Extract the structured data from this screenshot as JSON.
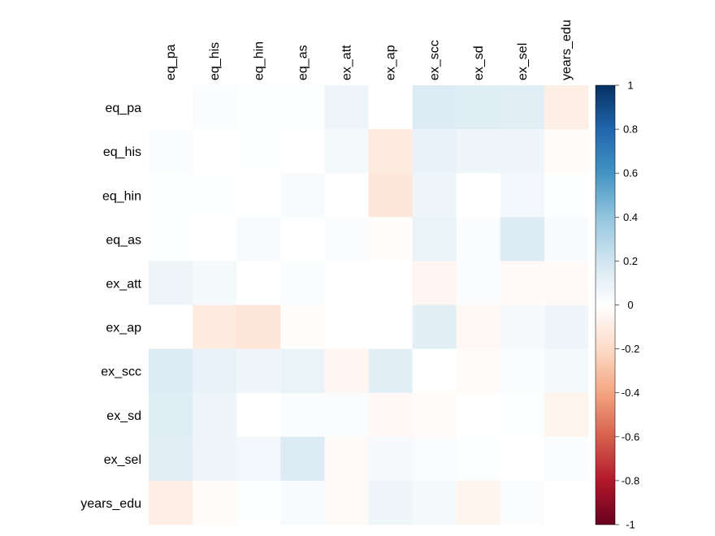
{
  "chart_data": {
    "type": "heatmap",
    "title": "",
    "variables": [
      "eq_pa",
      "eq_his",
      "eq_hin",
      "eq_as",
      "ex_att",
      "ex_ap",
      "ex_scc",
      "ex_sd",
      "ex_sel",
      "years_edu"
    ],
    "matrix": [
      [
        0.0,
        0.02,
        0.01,
        0.01,
        0.08,
        0.0,
        0.15,
        0.14,
        0.13,
        -0.09
      ],
      [
        0.02,
        0.0,
        0.01,
        0.0,
        0.05,
        -0.11,
        0.1,
        0.07,
        0.07,
        -0.02
      ],
      [
        0.01,
        0.01,
        0.0,
        0.03,
        0.0,
        -0.14,
        0.07,
        0.0,
        0.06,
        0.01
      ],
      [
        0.01,
        0.0,
        0.03,
        0.0,
        0.02,
        -0.01,
        0.09,
        0.02,
        0.15,
        0.03
      ],
      [
        0.08,
        0.05,
        0.0,
        0.02,
        0.0,
        0.0,
        -0.05,
        0.02,
        -0.03,
        -0.03
      ],
      [
        0.0,
        -0.11,
        -0.14,
        -0.01,
        0.0,
        0.0,
        0.12,
        -0.04,
        0.04,
        0.07
      ],
      [
        0.15,
        0.1,
        0.07,
        0.09,
        -0.05,
        0.12,
        0.0,
        -0.02,
        0.02,
        0.05
      ],
      [
        0.14,
        0.07,
        0.0,
        0.02,
        0.02,
        -0.04,
        -0.02,
        0.0,
        0.01,
        -0.06
      ],
      [
        0.13,
        0.07,
        0.06,
        0.15,
        -0.03,
        0.04,
        0.02,
        0.01,
        0.0,
        0.02
      ],
      [
        -0.09,
        -0.02,
        0.01,
        0.03,
        -0.03,
        0.07,
        0.05,
        -0.06,
        0.02,
        0.0
      ]
    ],
    "colorbar": {
      "ticks": [
        1,
        0.8,
        0.6,
        0.4,
        0.2,
        0,
        -0.2,
        -0.4,
        -0.6,
        -0.8,
        -1
      ],
      "range": [
        -1,
        1
      ],
      "colors": [
        "#67001F",
        "#B2182B",
        "#D6604D",
        "#F4A582",
        "#FDDBC7",
        "#FFFFFF",
        "#D1E5F0",
        "#92C5DE",
        "#4393C3",
        "#2166AC",
        "#053061"
      ]
    },
    "grid": false,
    "legend_position": "right"
  }
}
